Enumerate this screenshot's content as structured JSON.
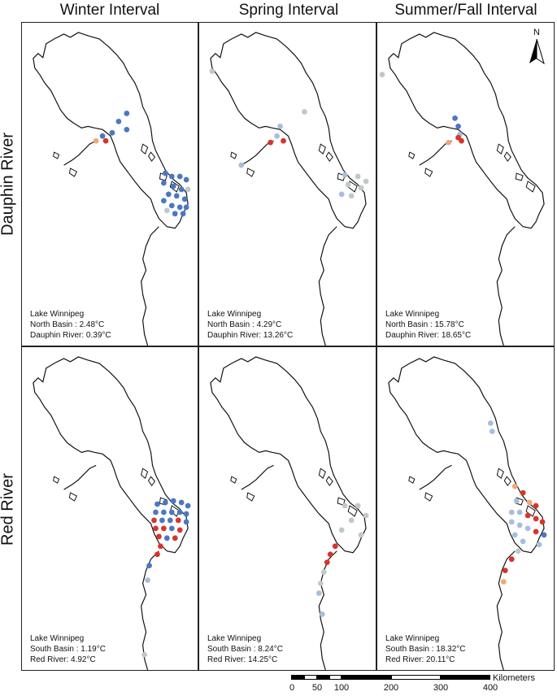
{
  "columns": [
    "Winter Interval",
    "Spring Interval",
    "Summer/Fall Interval"
  ],
  "rows": [
    "Dauphin River",
    "Red River"
  ],
  "legend_colors": {
    "cold": "#4a78c2",
    "cool": "#a7bedc",
    "neutral": "#bfc9c5",
    "warm": "#f2a77a",
    "hot": "#d9332b"
  },
  "panels": [
    {
      "id": "dauphin-winter",
      "title": "Lake Winnipeg",
      "line1": "North Basin : 2.48°C",
      "line2": "Dauphin River: 0.39°C"
    },
    {
      "id": "dauphin-spring",
      "title": "Lake Winnipeg",
      "line1": "North Basin : 4.29°C",
      "line2": "Dauphin River: 13.26°C"
    },
    {
      "id": "dauphin-summer",
      "title": "Lake Winnipeg",
      "line1": "North Basin : 15.78°C",
      "line2": "Dauphin River: 18.65°C"
    },
    {
      "id": "red-winter",
      "title": "Lake Winnipeg",
      "line1": "South Basin : 1.19°C",
      "line2": "Red River: 4.92°C"
    },
    {
      "id": "red-spring",
      "title": "Lake Winnipeg",
      "line1": "South Basin : 8.24°C",
      "line2": "Red River: 14.25°C"
    },
    {
      "id": "red-summer",
      "title": "Lake Winnipeg",
      "line1": "South Basin : 18.32°C",
      "line2": "Red River: 20.11°C"
    }
  ],
  "north_arrow": {
    "label": "N",
    "icon": "north-arrow-icon"
  },
  "scale_bar": {
    "units": "Kilometers",
    "ticks": [
      "0",
      "50",
      "100",
      "200",
      "300",
      "400"
    ]
  }
}
